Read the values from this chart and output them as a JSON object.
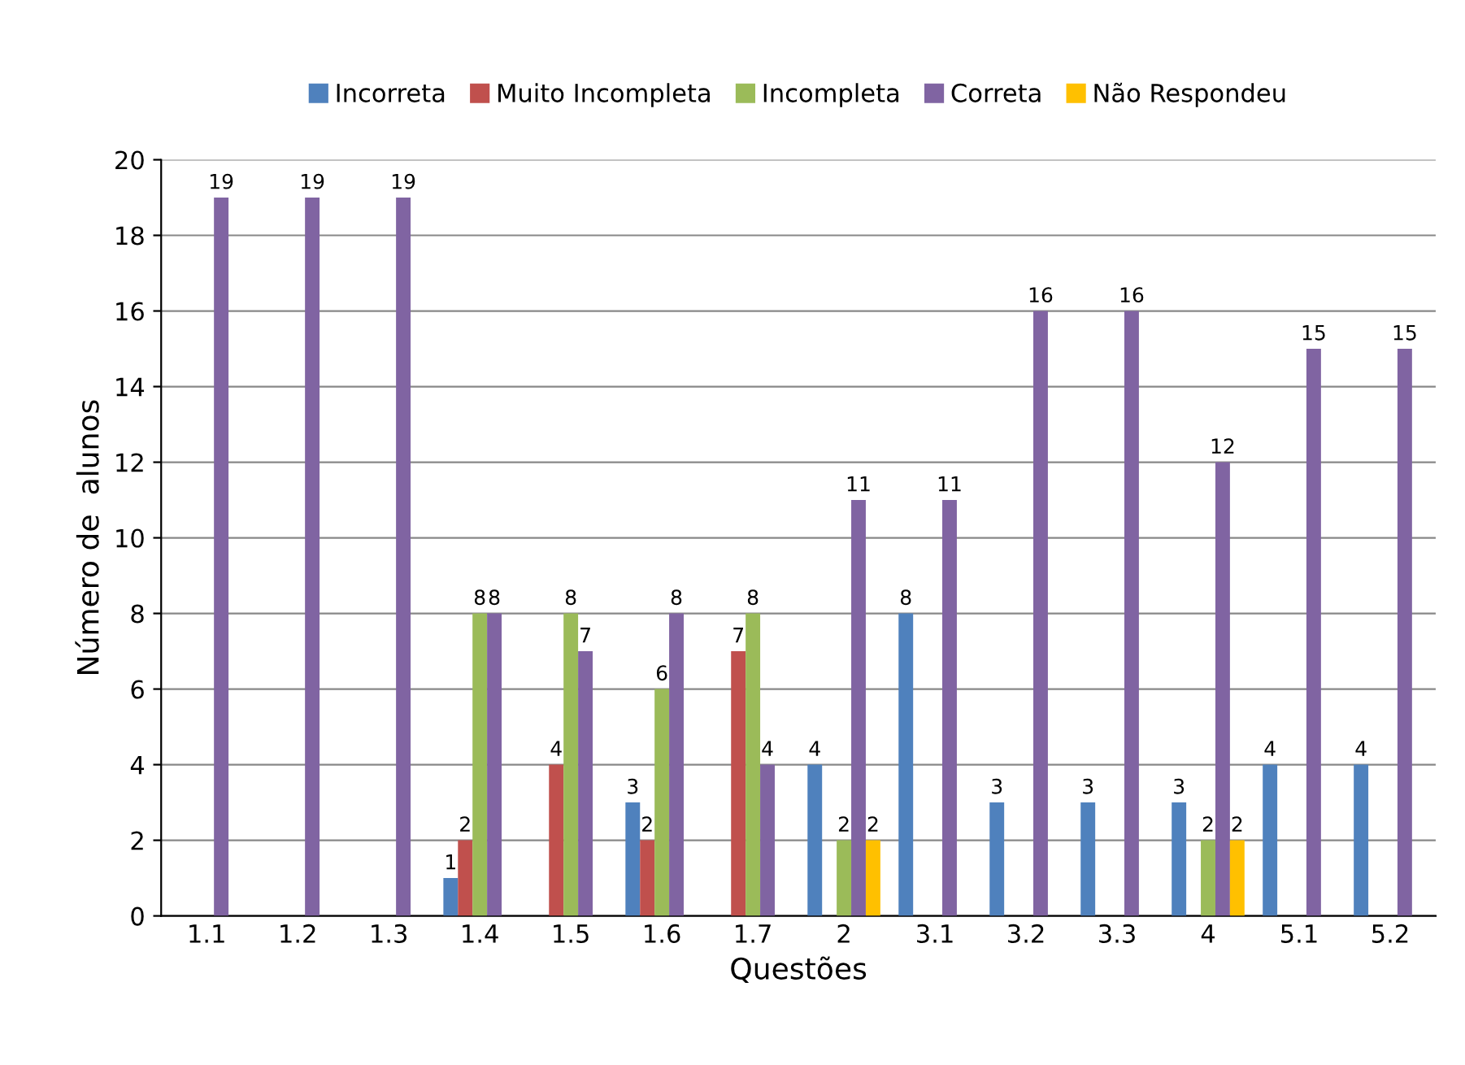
{
  "chart_data": {
    "type": "bar",
    "xlabel": "Questões",
    "ylabel": "Número de  alunos",
    "categories": [
      "1.1",
      "1.2",
      "1.3",
      "1.4",
      "1.5",
      "1.6",
      "1.7",
      "2",
      "3.1",
      "3.2",
      "3.3",
      "4",
      "5.1",
      "5.2"
    ],
    "series": [
      {
        "name": "Incorreta",
        "color": "#4f81bd",
        "values": [
          null,
          null,
          null,
          1,
          null,
          3,
          null,
          4,
          8,
          3,
          3,
          3,
          4,
          4
        ]
      },
      {
        "name": "Muito Incompleta",
        "color": "#c0504d",
        "values": [
          null,
          null,
          null,
          2,
          4,
          2,
          7,
          null,
          null,
          null,
          null,
          null,
          null,
          null
        ]
      },
      {
        "name": "Incompleta",
        "color": "#9bbb59",
        "values": [
          null,
          null,
          null,
          8,
          8,
          6,
          8,
          2,
          null,
          null,
          null,
          2,
          null,
          null
        ]
      },
      {
        "name": "Correta",
        "color": "#8064a2",
        "values": [
          19,
          19,
          19,
          8,
          7,
          8,
          4,
          11,
          11,
          16,
          16,
          12,
          15,
          15
        ]
      },
      {
        "name": "Não Respondeu",
        "color": "#ffc000",
        "values": [
          null,
          null,
          null,
          null,
          null,
          null,
          null,
          2,
          null,
          null,
          null,
          2,
          null,
          null
        ]
      }
    ],
    "ylim": [
      0,
      20
    ],
    "yticks": [
      0,
      2,
      4,
      6,
      8,
      10,
      12,
      14,
      16,
      18,
      20
    ],
    "grid": "y",
    "legend": "top",
    "data_labels": true
  }
}
